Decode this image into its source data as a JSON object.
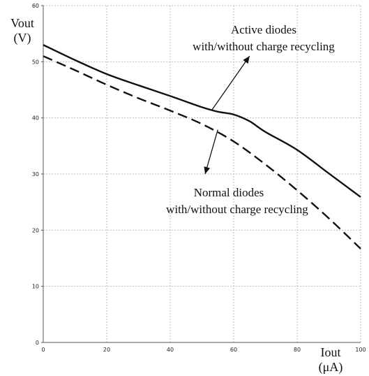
{
  "chart_data": {
    "type": "line",
    "x_label_line1": "Iout",
    "x_label_line2": "(μA)",
    "y_label_line1": "Vout",
    "y_label_line2": "(V)",
    "xlim": [
      0,
      100
    ],
    "ylim": [
      0,
      60
    ],
    "x_ticks": [
      "0",
      "20",
      "40",
      "60",
      "80",
      "100"
    ],
    "y_ticks": [
      "0",
      "10",
      "20",
      "30",
      "40",
      "50",
      "60"
    ],
    "grid": true,
    "series": [
      {
        "style": "solid",
        "x": [
          0,
          10,
          20,
          30,
          40,
          50,
          55,
          60,
          65,
          70,
          80,
          90,
          100
        ],
        "y": [
          53,
          50.3,
          47.8,
          45.8,
          43.9,
          41.9,
          41.1,
          40.6,
          39.4,
          37.5,
          34.3,
          30.1,
          25.9
        ]
      },
      {
        "style": "dashed",
        "x": [
          0,
          10,
          20,
          30,
          40,
          50,
          60,
          70,
          80,
          90,
          100
        ],
        "y": [
          51,
          48.5,
          45.9,
          43.5,
          41.3,
          38.9,
          35.8,
          31.7,
          27.1,
          22.1,
          16.7
        ]
      }
    ],
    "annotations": [
      {
        "id": "active",
        "line1": "Active diodes",
        "line2": "with/without charge recycling",
        "points_to": [
          53,
          41.3
        ],
        "arrow_tip": [
          65,
          51
        ]
      },
      {
        "id": "normal",
        "line1": "Normal diodes",
        "line2": "with/without charge recycling",
        "points_to": [
          55,
          37.9
        ],
        "arrow_tip": [
          51,
          30
        ]
      }
    ]
  }
}
